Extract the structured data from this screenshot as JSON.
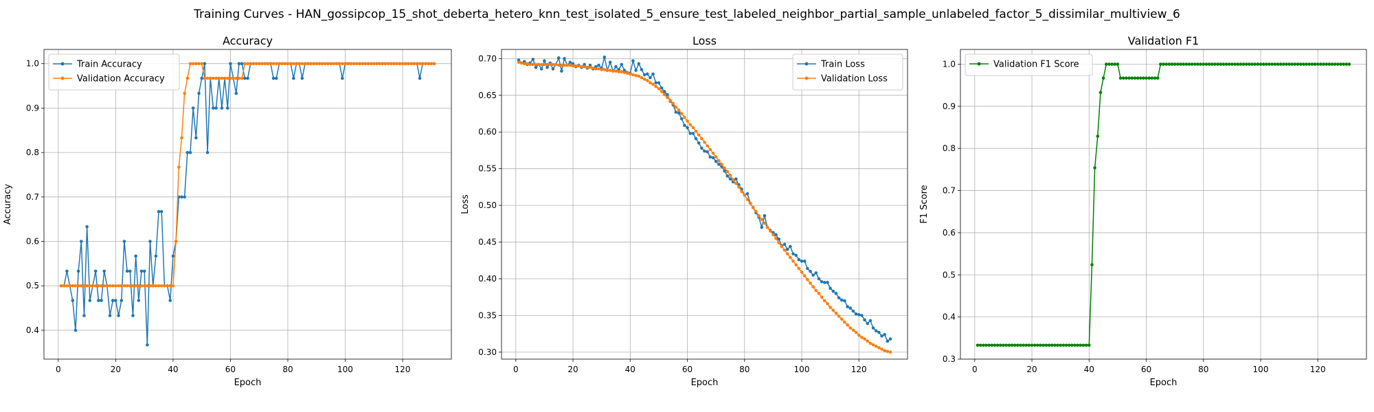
{
  "suptitle": "Training Curves - HAN_gossipcop_15_shot_deberta_hetero_knn_test_isolated_5_ensure_test_labeled_neighbor_partial_sample_unlabeled_factor_5_dissimilar_multiview_6",
  "chart_data": [
    {
      "type": "line",
      "title": "Accuracy",
      "xlabel": "Epoch",
      "ylabel": "Accuracy",
      "xlim": [
        -5,
        137
      ],
      "ylim": [
        0.335,
        1.032
      ],
      "xticks": [
        0,
        20,
        40,
        60,
        80,
        100,
        120
      ],
      "yticks": [
        0.4,
        0.5,
        0.6,
        0.7,
        0.8,
        0.9,
        1.0
      ],
      "grid": true,
      "legend": "upper-left",
      "series": [
        {
          "name": "Train Accuracy",
          "color": "#1f77b4",
          "values": [
            0.5,
            0.5,
            0.533,
            0.5,
            0.467,
            0.4,
            0.533,
            0.6,
            0.433,
            0.633,
            0.467,
            0.5,
            0.533,
            0.467,
            0.467,
            0.533,
            0.5,
            0.433,
            0.467,
            0.467,
            0.433,
            0.467,
            0.6,
            0.533,
            0.533,
            0.433,
            0.567,
            0.467,
            0.533,
            0.533,
            0.367,
            0.6,
            0.5,
            0.567,
            0.667,
            0.667,
            0.5,
            0.5,
            0.467,
            0.567,
            0.6,
            0.7,
            0.7,
            0.7,
            0.8,
            0.8,
            0.9,
            0.833,
            0.933,
            0.967,
            1.0,
            0.8,
            0.967,
            0.9,
            0.9,
            0.967,
            0.9,
            0.967,
            0.9,
            1.0,
            0.967,
            0.933,
            1.0,
            1.0,
            0.967,
            0.967,
            1.0,
            1.0,
            1.0,
            1.0,
            1.0,
            1.0,
            1.0,
            1.0,
            0.967,
            0.967,
            1.0,
            1.0,
            1.0,
            1.0,
            1.0,
            0.967,
            1.0,
            1.0,
            0.967,
            1.0,
            1.0,
            1.0,
            1.0,
            1.0,
            1.0,
            1.0,
            1.0,
            1.0,
            1.0,
            1.0,
            1.0,
            1.0,
            0.967,
            1.0,
            1.0,
            1.0,
            1.0,
            1.0,
            1.0,
            1.0,
            1.0,
            1.0,
            1.0,
            1.0,
            1.0,
            1.0,
            1.0,
            1.0,
            1.0,
            1.0,
            1.0,
            1.0,
            1.0,
            1.0,
            1.0,
            1.0,
            1.0,
            1.0,
            1.0,
            0.967,
            1.0,
            1.0,
            1.0,
            1.0,
            1.0
          ]
        },
        {
          "name": "Validation Accuracy",
          "color": "#ff7f0e",
          "values": [
            0.5,
            0.5,
            0.5,
            0.5,
            0.5,
            0.5,
            0.5,
            0.5,
            0.5,
            0.5,
            0.5,
            0.5,
            0.5,
            0.5,
            0.5,
            0.5,
            0.5,
            0.5,
            0.5,
            0.5,
            0.5,
            0.5,
            0.5,
            0.5,
            0.5,
            0.5,
            0.5,
            0.5,
            0.5,
            0.5,
            0.5,
            0.5,
            0.5,
            0.5,
            0.5,
            0.5,
            0.5,
            0.5,
            0.5,
            0.5,
            0.6,
            0.767,
            0.833,
            0.933,
            0.967,
            1.0,
            1.0,
            1.0,
            1.0,
            1.0,
            0.967,
            0.967,
            0.967,
            0.967,
            0.967,
            0.967,
            0.967,
            0.967,
            0.967,
            0.967,
            0.967,
            0.967,
            0.967,
            0.967,
            1.0,
            1.0,
            1.0,
            1.0,
            1.0,
            1.0,
            1.0,
            1.0,
            1.0,
            1.0,
            1.0,
            1.0,
            1.0,
            1.0,
            1.0,
            1.0,
            1.0,
            1.0,
            1.0,
            1.0,
            1.0,
            1.0,
            1.0,
            1.0,
            1.0,
            1.0,
            1.0,
            1.0,
            1.0,
            1.0,
            1.0,
            1.0,
            1.0,
            1.0,
            1.0,
            1.0,
            1.0,
            1.0,
            1.0,
            1.0,
            1.0,
            1.0,
            1.0,
            1.0,
            1.0,
            1.0,
            1.0,
            1.0,
            1.0,
            1.0,
            1.0,
            1.0,
            1.0,
            1.0,
            1.0,
            1.0,
            1.0,
            1.0,
            1.0,
            1.0,
            1.0,
            1.0,
            1.0,
            1.0,
            1.0,
            1.0,
            1.0
          ]
        }
      ]
    },
    {
      "type": "line",
      "title": "Loss",
      "xlabel": "Epoch",
      "ylabel": "Loss",
      "xlim": [
        -5,
        137
      ],
      "ylim": [
        0.2905,
        0.7125
      ],
      "xticks": [
        0,
        20,
        40,
        60,
        80,
        100,
        120
      ],
      "yticks": [
        0.3,
        0.35,
        0.4,
        0.45,
        0.5,
        0.55,
        0.6,
        0.65,
        0.7
      ],
      "grid": true,
      "legend": "upper-right",
      "series": [
        {
          "name": "Train Loss",
          "color": "#1f77b4",
          "values": [
            0.698,
            0.694,
            0.696,
            0.692,
            0.694,
            0.699,
            0.688,
            0.692,
            0.686,
            0.697,
            0.688,
            0.694,
            0.686,
            0.692,
            0.701,
            0.683,
            0.7,
            0.691,
            0.695,
            0.693,
            0.689,
            0.691,
            0.688,
            0.692,
            0.687,
            0.691,
            0.686,
            0.689,
            0.691,
            0.687,
            0.702,
            0.684,
            0.695,
            0.683,
            0.689,
            0.685,
            0.692,
            0.684,
            0.681,
            0.68,
            0.697,
            0.684,
            0.693,
            0.685,
            0.678,
            0.679,
            0.674,
            0.679,
            0.667,
            0.667,
            0.66,
            0.655,
            0.651,
            0.642,
            0.637,
            0.627,
            0.626,
            0.618,
            0.609,
            0.606,
            0.598,
            0.598,
            0.591,
            0.585,
            0.578,
            0.574,
            0.573,
            0.566,
            0.565,
            0.56,
            0.556,
            0.553,
            0.547,
            0.54,
            0.536,
            0.532,
            0.536,
            0.528,
            0.522,
            0.514,
            0.516,
            0.503,
            0.497,
            0.49,
            0.484,
            0.47,
            0.486,
            0.47,
            0.466,
            0.463,
            0.46,
            0.454,
            0.445,
            0.447,
            0.44,
            0.444,
            0.434,
            0.432,
            0.426,
            0.424,
            0.424,
            0.414,
            0.41,
            0.405,
            0.408,
            0.4,
            0.396,
            0.395,
            0.395,
            0.387,
            0.383,
            0.38,
            0.374,
            0.371,
            0.37,
            0.362,
            0.36,
            0.356,
            0.352,
            0.351,
            0.35,
            0.344,
            0.339,
            0.343,
            0.333,
            0.329,
            0.327,
            0.322,
            0.324,
            0.315,
            0.318
          ]
        },
        {
          "name": "Validation Loss",
          "color": "#ff7f0e",
          "values": [
            0.695,
            0.694,
            0.693,
            0.693,
            0.692,
            0.692,
            0.692,
            0.692,
            0.692,
            0.692,
            0.692,
            0.692,
            0.692,
            0.692,
            0.691,
            0.691,
            0.691,
            0.691,
            0.691,
            0.69,
            0.69,
            0.69,
            0.689,
            0.689,
            0.688,
            0.688,
            0.687,
            0.686,
            0.686,
            0.685,
            0.685,
            0.684,
            0.684,
            0.683,
            0.683,
            0.682,
            0.682,
            0.681,
            0.68,
            0.679,
            0.678,
            0.677,
            0.676,
            0.674,
            0.672,
            0.67,
            0.667,
            0.665,
            0.662,
            0.659,
            0.655,
            0.651,
            0.647,
            0.643,
            0.639,
            0.634,
            0.63,
            0.625,
            0.62,
            0.615,
            0.61,
            0.606,
            0.601,
            0.596,
            0.591,
            0.586,
            0.581,
            0.576,
            0.571,
            0.566,
            0.561,
            0.556,
            0.551,
            0.546,
            0.541,
            0.535,
            0.53,
            0.525,
            0.519,
            0.514,
            0.508,
            0.503,
            0.497,
            0.492,
            0.486,
            0.481,
            0.476,
            0.47,
            0.465,
            0.46,
            0.455,
            0.449,
            0.444,
            0.439,
            0.434,
            0.429,
            0.424,
            0.419,
            0.414,
            0.409,
            0.404,
            0.399,
            0.394,
            0.389,
            0.384,
            0.38,
            0.375,
            0.37,
            0.366,
            0.361,
            0.357,
            0.353,
            0.349,
            0.345,
            0.341,
            0.337,
            0.333,
            0.33,
            0.327,
            0.323,
            0.32,
            0.318,
            0.315,
            0.312,
            0.31,
            0.308,
            0.306,
            0.304,
            0.302,
            0.301,
            0.3
          ]
        }
      ]
    },
    {
      "type": "line",
      "title": "Validation F1",
      "xlabel": "Epoch",
      "ylabel": "F1 Score",
      "xlim": [
        -5,
        137
      ],
      "ylim": [
        0.3,
        1.035
      ],
      "xticks": [
        0,
        20,
        40,
        60,
        80,
        100,
        120
      ],
      "yticks": [
        0.3,
        0.4,
        0.5,
        0.6,
        0.7,
        0.8,
        0.9,
        1.0
      ],
      "grid": true,
      "legend": "upper-left",
      "series": [
        {
          "name": "Validation F1 Score",
          "color": "#008000",
          "values": [
            0.333,
            0.333,
            0.333,
            0.333,
            0.333,
            0.333,
            0.333,
            0.333,
            0.333,
            0.333,
            0.333,
            0.333,
            0.333,
            0.333,
            0.333,
            0.333,
            0.333,
            0.333,
            0.333,
            0.333,
            0.333,
            0.333,
            0.333,
            0.333,
            0.333,
            0.333,
            0.333,
            0.333,
            0.333,
            0.333,
            0.333,
            0.333,
            0.333,
            0.333,
            0.333,
            0.333,
            0.333,
            0.333,
            0.333,
            0.333,
            0.524,
            0.754,
            0.829,
            0.933,
            0.967,
            1.0,
            1.0,
            1.0,
            1.0,
            1.0,
            0.967,
            0.967,
            0.967,
            0.967,
            0.967,
            0.967,
            0.967,
            0.967,
            0.967,
            0.967,
            0.967,
            0.967,
            0.967,
            0.967,
            1.0,
            1.0,
            1.0,
            1.0,
            1.0,
            1.0,
            1.0,
            1.0,
            1.0,
            1.0,
            1.0,
            1.0,
            1.0,
            1.0,
            1.0,
            1.0,
            1.0,
            1.0,
            1.0,
            1.0,
            1.0,
            1.0,
            1.0,
            1.0,
            1.0,
            1.0,
            1.0,
            1.0,
            1.0,
            1.0,
            1.0,
            1.0,
            1.0,
            1.0,
            1.0,
            1.0,
            1.0,
            1.0,
            1.0,
            1.0,
            1.0,
            1.0,
            1.0,
            1.0,
            1.0,
            1.0,
            1.0,
            1.0,
            1.0,
            1.0,
            1.0,
            1.0,
            1.0,
            1.0,
            1.0,
            1.0,
            1.0,
            1.0,
            1.0,
            1.0,
            1.0,
            1.0,
            1.0,
            1.0,
            1.0,
            1.0,
            1.0
          ]
        }
      ]
    }
  ]
}
